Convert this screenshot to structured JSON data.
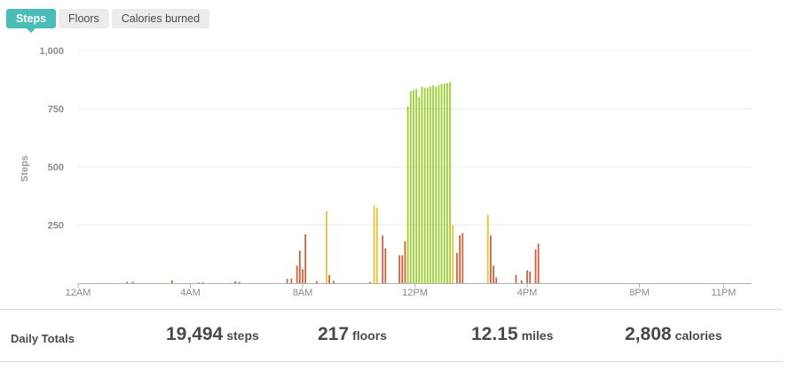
{
  "tabs": [
    {
      "label": "Steps",
      "active": true
    },
    {
      "label": "Floors",
      "active": false
    },
    {
      "label": "Calories burned",
      "active": false
    }
  ],
  "colors": {
    "accent": "#4bbdb9",
    "bar_low": "#d2623a",
    "bar_mid": "#e8c235",
    "bar_high": "#9ccf2e",
    "grid": "#ebebeb",
    "axis": "#b0b0b0"
  },
  "chart_data": {
    "type": "bar",
    "title": "",
    "xlabel": "",
    "ylabel": "Steps",
    "ylim": [
      0,
      1000
    ],
    "y_ticks": [
      250,
      500,
      750,
      1000
    ],
    "y_tick_labels": [
      "250",
      "500",
      "750",
      "1,000"
    ],
    "x_ticks": [
      0,
      4,
      8,
      12,
      16,
      20,
      23
    ],
    "x_tick_labels": [
      "12AM",
      "4AM",
      "8AM",
      "12PM",
      "4PM",
      "8PM",
      "11PM"
    ],
    "xlim": [
      0,
      24
    ],
    "grid": true,
    "legend": "none",
    "x_unit": "hour of day",
    "points": [
      {
        "x": 1.75,
        "y": 6
      },
      {
        "x": 1.95,
        "y": 5
      },
      {
        "x": 3.35,
        "y": 12
      },
      {
        "x": 4.3,
        "y": 3
      },
      {
        "x": 4.45,
        "y": 3
      },
      {
        "x": 5.6,
        "y": 8
      },
      {
        "x": 5.75,
        "y": 5
      },
      {
        "x": 7.45,
        "y": 18
      },
      {
        "x": 7.6,
        "y": 20
      },
      {
        "x": 7.8,
        "y": 75
      },
      {
        "x": 7.9,
        "y": 140
      },
      {
        "x": 8.0,
        "y": 60
      },
      {
        "x": 8.1,
        "y": 210
      },
      {
        "x": 8.5,
        "y": 8
      },
      {
        "x": 8.85,
        "y": 310
      },
      {
        "x": 8.95,
        "y": 35
      },
      {
        "x": 9.1,
        "y": 10
      },
      {
        "x": 10.4,
        "y": 5
      },
      {
        "x": 10.55,
        "y": 335
      },
      {
        "x": 10.65,
        "y": 325
      },
      {
        "x": 10.85,
        "y": 205
      },
      {
        "x": 10.95,
        "y": 150
      },
      {
        "x": 11.45,
        "y": 120
      },
      {
        "x": 11.55,
        "y": 120
      },
      {
        "x": 11.65,
        "y": 180
      },
      {
        "x": 11.75,
        "y": 760
      },
      {
        "x": 11.85,
        "y": 825
      },
      {
        "x": 11.95,
        "y": 830
      },
      {
        "x": 12.05,
        "y": 835
      },
      {
        "x": 12.15,
        "y": 800
      },
      {
        "x": 12.25,
        "y": 845
      },
      {
        "x": 12.35,
        "y": 840
      },
      {
        "x": 12.45,
        "y": 840
      },
      {
        "x": 12.55,
        "y": 845
      },
      {
        "x": 12.65,
        "y": 850
      },
      {
        "x": 12.75,
        "y": 845
      },
      {
        "x": 12.85,
        "y": 852
      },
      {
        "x": 12.95,
        "y": 855
      },
      {
        "x": 13.05,
        "y": 858
      },
      {
        "x": 13.15,
        "y": 860
      },
      {
        "x": 13.25,
        "y": 865
      },
      {
        "x": 13.35,
        "y": 250
      },
      {
        "x": 13.5,
        "y": 130
      },
      {
        "x": 13.6,
        "y": 205
      },
      {
        "x": 13.7,
        "y": 215
      },
      {
        "x": 14.6,
        "y": 295
      },
      {
        "x": 14.7,
        "y": 205
      },
      {
        "x": 14.8,
        "y": 75
      },
      {
        "x": 14.9,
        "y": 25
      },
      {
        "x": 15.6,
        "y": 35
      },
      {
        "x": 15.8,
        "y": 12
      },
      {
        "x": 16.0,
        "y": 55
      },
      {
        "x": 16.1,
        "y": 50
      },
      {
        "x": 16.3,
        "y": 145
      },
      {
        "x": 16.4,
        "y": 170
      }
    ]
  },
  "totals": {
    "label": "Daily Totals",
    "steps": {
      "value": "19,494",
      "unit": "steps"
    },
    "floors": {
      "value": "217",
      "unit": "floors"
    },
    "miles": {
      "value": "12.15",
      "unit": "miles"
    },
    "calories": {
      "value": "2,808",
      "unit": "calories"
    }
  }
}
